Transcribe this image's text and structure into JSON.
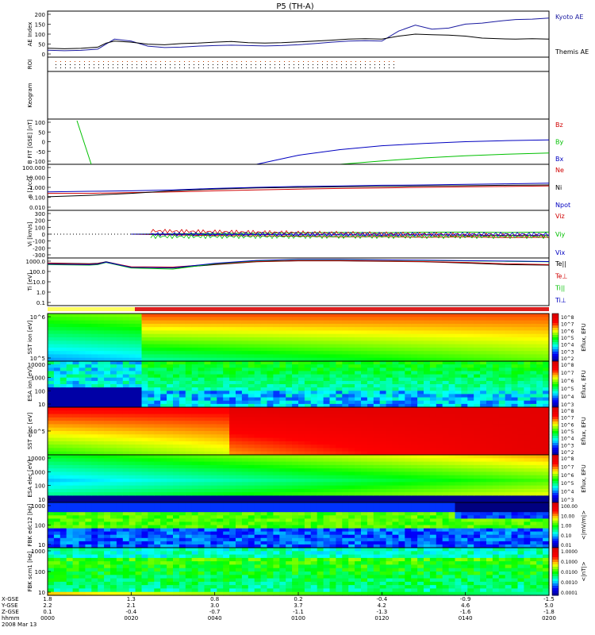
{
  "title": "P5 (TH-A)",
  "colors": {
    "kyoto": "#1a1aa0",
    "themis": "#000000",
    "red": "#d00000",
    "green": "#00c000",
    "blue": "#0000c0",
    "black": "#000000"
  },
  "chart_data": [
    {
      "type": "line",
      "panel": "ae",
      "ylabel": "AE Index",
      "yticks": [
        "200",
        "150",
        "100",
        "50",
        "0"
      ],
      "ylim": [
        -20,
        210
      ],
      "x": [
        0,
        4,
        8,
        12,
        14,
        16,
        20,
        24,
        28,
        32,
        36,
        40,
        44,
        48,
        52,
        56,
        60,
        64,
        68,
        72,
        76,
        80,
        84,
        88,
        92,
        96,
        100,
        104,
        108,
        112,
        116,
        120
      ],
      "series": [
        {
          "name": "Kyoto AE",
          "color": "#1a1aa0",
          "values": [
            15,
            12,
            14,
            20,
            45,
            70,
            60,
            35,
            28,
            30,
            35,
            38,
            40,
            38,
            36,
            38,
            42,
            48,
            55,
            60,
            62,
            60,
            110,
            140,
            120,
            125,
            145,
            150,
            160,
            168,
            170,
            175
          ]
        },
        {
          "name": "Themis AE",
          "color": "#000000",
          "values": [
            25,
            22,
            24,
            30,
            50,
            60,
            55,
            45,
            42,
            48,
            50,
            55,
            58,
            52,
            50,
            52,
            56,
            60,
            65,
            70,
            72,
            70,
            85,
            95,
            92,
            90,
            85,
            75,
            72,
            70,
            72,
            70
          ]
        }
      ]
    },
    {
      "type": "line",
      "panel": "bfield",
      "ylabel": "B FIT [GSE] [nT]",
      "yticks": [
        "100",
        "50",
        "0",
        "-50",
        "-100"
      ],
      "ylim": [
        -100,
        100
      ],
      "x": [
        0,
        10,
        20,
        30,
        40,
        50,
        60,
        70,
        80,
        90,
        100,
        110,
        120
      ],
      "series": [
        {
          "name": "Bz",
          "color": "#d00000",
          "values": [
            null,
            null,
            null,
            null,
            null,
            null,
            null,
            null,
            null,
            null,
            null,
            null,
            null
          ]
        },
        {
          "name": "By",
          "color": "#00c000",
          "values": [
            null,
            null,
            null,
            null,
            null,
            null,
            null,
            -100,
            -85,
            -72,
            -62,
            -55,
            -50
          ]
        },
        {
          "name": "Bx",
          "color": "#0000c0",
          "values": [
            null,
            null,
            null,
            null,
            null,
            -100,
            -60,
            -35,
            -18,
            -8,
            0,
            5,
            8
          ]
        }
      ]
    },
    {
      "type": "line",
      "panel": "density",
      "ylabel": "n [1/cc]",
      "yticks": [
        "100.000",
        "10.000",
        "1.000",
        "0.100",
        "0.010"
      ],
      "ylim": [
        0.01,
        100
      ],
      "yscale": "log",
      "x": [
        0,
        10,
        20,
        30,
        40,
        50,
        60,
        70,
        80,
        90,
        100,
        110,
        120
      ],
      "series": [
        {
          "name": "Ne",
          "color": "#d00000",
          "values": [
            0.3,
            0.3,
            0.35,
            0.4,
            0.5,
            0.6,
            0.7,
            0.8,
            0.9,
            1.0,
            1.1,
            1.2,
            1.3
          ]
        },
        {
          "name": "Ni",
          "color": "#000000",
          "values": [
            0.15,
            0.2,
            0.3,
            0.5,
            0.7,
            0.9,
            1.0,
            1.1,
            1.2,
            1.3,
            1.4,
            1.5,
            1.6
          ]
        },
        {
          "name": "Npot",
          "color": "#0000c0",
          "values": [
            0.4,
            0.45,
            0.5,
            0.6,
            0.8,
            1.0,
            1.2,
            1.3,
            1.5,
            1.6,
            1.8,
            2.0,
            2.3
          ]
        }
      ]
    },
    {
      "type": "line",
      "panel": "velocity",
      "ylabel": "Vi [km/s]",
      "yticks": [
        "300",
        "200",
        "100",
        "0",
        "-100",
        "-200",
        "-300"
      ],
      "ylim": [
        -350,
        350
      ],
      "x": [
        20,
        30,
        40,
        50,
        60,
        70,
        80,
        90,
        100,
        110,
        120
      ],
      "series": [
        {
          "name": "Viz",
          "color": "#d00000",
          "values": [
            0,
            -10,
            -20,
            -25,
            -30,
            -40,
            -35,
            -45,
            -40,
            -50,
            -45
          ]
        },
        {
          "name": "Viy",
          "color": "#00c000",
          "values": [
            0,
            5,
            10,
            15,
            20,
            25,
            22,
            28,
            30,
            25,
            30
          ]
        },
        {
          "name": "Vix",
          "color": "#0000c0",
          "values": [
            0,
            0,
            -5,
            -5,
            -10,
            -10,
            -15,
            -10,
            -15,
            -20,
            -15
          ]
        }
      ]
    },
    {
      "type": "line",
      "panel": "temperature",
      "ylabel": "Ti [eV]",
      "yticks": [
        "1000.0",
        "100.0",
        "10.0",
        "1.0",
        "0.1"
      ],
      "ylim": [
        0.1,
        2000
      ],
      "yscale": "log",
      "x": [
        0,
        10,
        12,
        14,
        20,
        30,
        40,
        50,
        60,
        70,
        80,
        90,
        100,
        110,
        120
      ],
      "series": [
        {
          "name": "Te||",
          "color": "#000000",
          "values": [
            700,
            600,
            650,
            900,
            300,
            250,
            500,
            900,
            1100,
            1100,
            1000,
            900,
            700,
            500,
            450
          ]
        },
        {
          "name": "Te⊥",
          "color": "#d00000",
          "values": [
            650,
            550,
            600,
            850,
            320,
            300,
            550,
            950,
            1150,
            1150,
            1050,
            950,
            800,
            600,
            500
          ]
        },
        {
          "name": "Ti||",
          "color": "#00c000",
          "values": [
            500,
            450,
            500,
            800,
            250,
            200,
            600,
            1100,
            1400,
            1400,
            1300,
            1200,
            1100,
            1000,
            900
          ]
        },
        {
          "name": "Ti⊥",
          "color": "#0000c0",
          "values": [
            550,
            500,
            550,
            850,
            280,
            260,
            650,
            1200,
            1450,
            1450,
            1350,
            1250,
            1150,
            1050,
            950
          ]
        }
      ]
    },
    {
      "type": "heatmap",
      "panel": "spectra",
      "rows": [
        {
          "ylabel": "SST ion [eV]",
          "yticks": [
            "10^6",
            "10^5"
          ],
          "cbar": [
            "10^8",
            "10^7",
            "10^6",
            "10^5",
            "10^4",
            "10^3",
            "10^2"
          ],
          "cbar_label": "Eflux, EFU"
        },
        {
          "ylabel": "ESA ion [eV]",
          "yticks": [
            "10000",
            "1000",
            "100",
            "10"
          ],
          "cbar": [
            "10^8",
            "10^7",
            "10^6",
            "10^5",
            "10^4",
            "10^3"
          ],
          "cbar_label": "Eflux, EFU"
        },
        {
          "ylabel": "SST elec [eV]",
          "yticks": [
            "10^5"
          ],
          "cbar": [
            "10^8",
            "10^7",
            "10^6",
            "10^5",
            "10^4",
            "10^3",
            "10^2"
          ],
          "cbar_label": "Eflux, EFU"
        },
        {
          "ylabel": "ESA elec [eV]",
          "yticks": [
            "10000",
            "1000",
            "100",
            "10"
          ],
          "cbar": [
            "10^8",
            "10^7",
            "10^6",
            "10^5",
            "10^4",
            "10^3"
          ],
          "cbar_label": "Eflux, EFU"
        },
        {
          "ylabel": "FBK edc12 [Hz]",
          "yticks": [
            "1000",
            "100",
            "10"
          ],
          "cbar": [
            "100.00",
            "10.00",
            "1.00",
            "0.10",
            "0.01"
          ],
          "cbar_label": "<|mV/m|>"
        },
        {
          "ylabel": "FBK scm1 [Hz]",
          "yticks": [
            "1000",
            "100",
            "10"
          ],
          "cbar": [
            "1.0000",
            "0.1000",
            "0.0100",
            "0.0010",
            "0.0001"
          ],
          "cbar_label": "<|nT|>"
        }
      ]
    }
  ],
  "rows_labels": {
    "roi": "ROI",
    "keogram": "Keogram"
  },
  "xaxis": {
    "row_labels": [
      "X-GSE",
      "Y-GSE",
      "Z-GSE",
      "hhmm"
    ],
    "date": "2008 Mar 13",
    "ticks": [
      {
        "x": "1.8",
        "y": "2.2",
        "z": "0.1",
        "t": "0000"
      },
      {
        "x": "1.3",
        "y": "2.1",
        "z": "-0.4",
        "t": "0020"
      },
      {
        "x": "0.8",
        "y": "3.0",
        "z": "-0.7",
        "t": "0040"
      },
      {
        "x": "0.2",
        "y": "3.7",
        "z": "-1.1",
        "t": "0100"
      },
      {
        "x": "-0.4",
        "y": "4.2",
        "z": "-1.3",
        "t": "0120"
      },
      {
        "x": "-0.9",
        "y": "4.6",
        "z": "-1.6",
        "t": "0140"
      },
      {
        "x": "-1.5",
        "y": "5.0",
        "z": "-1.8",
        "t": "0200"
      }
    ]
  }
}
